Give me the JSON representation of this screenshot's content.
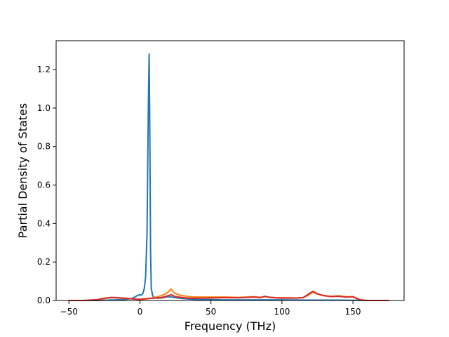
{
  "chart_data": {
    "type": "line",
    "title": "",
    "xlabel": "Frequency (THz)",
    "ylabel": "Partial Density of States",
    "xlim": [
      -59,
      186
    ],
    "ylim": [
      0,
      1.35
    ],
    "xticks": [
      -50,
      0,
      50,
      100,
      150
    ],
    "yticks": [
      0.0,
      0.2,
      0.4,
      0.6,
      0.8,
      1.0,
      1.2
    ],
    "xtick_labels": [
      "−50",
      "0",
      "50",
      "100",
      "150"
    ],
    "ytick_labels": [
      "0.0",
      "0.2",
      "0.4",
      "0.6",
      "0.8",
      "1.0",
      "1.2"
    ],
    "grid": false,
    "series": [
      {
        "color": "#1f77b4",
        "x": [
          -50,
          -30,
          -10,
          -5,
          -2,
          0,
          1,
          2,
          3,
          4,
          5,
          6,
          6.5,
          7,
          7.5,
          8,
          9,
          10,
          12,
          15,
          20,
          25,
          30,
          40,
          60,
          80,
          100,
          120,
          140,
          160,
          175
        ],
        "y": [
          0.0,
          0.0,
          0.005,
          0.012,
          0.025,
          0.03,
          0.028,
          0.035,
          0.06,
          0.12,
          0.35,
          1.05,
          1.28,
          0.85,
          0.25,
          0.06,
          0.025,
          0.015,
          0.012,
          0.013,
          0.02,
          0.015,
          0.01,
          0.005,
          0.003,
          0.003,
          0.003,
          0.002,
          0.002,
          0.0,
          0.0
        ]
      },
      {
        "color": "#ff7f0e",
        "x": [
          -50,
          -40,
          -30,
          -25,
          -20,
          -15,
          -10,
          -5,
          0,
          5,
          10,
          15,
          18,
          20,
          22,
          24,
          27,
          30,
          35,
          40,
          50,
          60,
          70,
          75,
          80,
          85,
          88,
          90,
          95,
          100,
          105,
          110,
          115,
          118,
          120,
          122,
          124,
          127,
          130,
          135,
          140,
          145,
          150,
          152,
          155,
          160,
          175
        ],
        "y": [
          0.0,
          0.0,
          0.003,
          0.01,
          0.015,
          0.013,
          0.01,
          0.008,
          0.005,
          0.008,
          0.015,
          0.025,
          0.035,
          0.045,
          0.06,
          0.04,
          0.03,
          0.025,
          0.02,
          0.018,
          0.018,
          0.018,
          0.016,
          0.018,
          0.02,
          0.016,
          0.02,
          0.018,
          0.015,
          0.014,
          0.014,
          0.013,
          0.015,
          0.025,
          0.035,
          0.045,
          0.035,
          0.03,
          0.025,
          0.022,
          0.024,
          0.02,
          0.018,
          0.015,
          0.003,
          0.0,
          0.0
        ]
      },
      {
        "color": "#d62728",
        "x": [
          -50,
          -40,
          -30,
          -25,
          -20,
          -15,
          -10,
          -5,
          0,
          5,
          10,
          15,
          20,
          22,
          25,
          30,
          35,
          40,
          50,
          60,
          70,
          75,
          80,
          85,
          88,
          90,
          95,
          100,
          105,
          110,
          115,
          118,
          120,
          122,
          124,
          127,
          130,
          135,
          140,
          145,
          150,
          152,
          155,
          160,
          175
        ],
        "y": [
          0.0,
          0.0,
          0.004,
          0.012,
          0.016,
          0.014,
          0.012,
          0.008,
          0.006,
          0.01,
          0.012,
          0.015,
          0.025,
          0.03,
          0.02,
          0.015,
          0.012,
          0.012,
          0.013,
          0.015,
          0.014,
          0.016,
          0.018,
          0.015,
          0.022,
          0.018,
          0.014,
          0.012,
          0.013,
          0.012,
          0.015,
          0.03,
          0.04,
          0.048,
          0.038,
          0.03,
          0.024,
          0.02,
          0.022,
          0.018,
          0.02,
          0.012,
          0.003,
          0.0,
          0.0
        ]
      }
    ]
  }
}
